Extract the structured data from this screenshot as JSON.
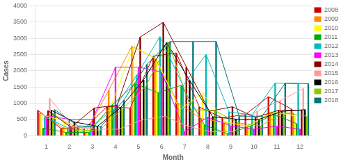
{
  "chart_data": {
    "type": "bar",
    "xlabel": "Month",
    "ylabel": "Cases",
    "categories": [
      "1",
      "2",
      "3",
      "4",
      "5",
      "6",
      "7",
      "8",
      "9",
      "10",
      "11",
      "12"
    ],
    "series": [
      {
        "name": "2008",
        "color": "#cc0000",
        "values": [
          780,
          220,
          200,
          900,
          850,
          2450,
          2550,
          880,
          550,
          650,
          1200,
          820
        ]
      },
      {
        "name": "2009",
        "color": "#ff8800",
        "values": [
          700,
          250,
          100,
          1400,
          2750,
          2400,
          1000,
          530,
          400,
          300,
          680,
          700
        ]
      },
      {
        "name": "2010",
        "color": "#ffff00",
        "values": [
          650,
          450,
          110,
          860,
          2750,
          2350,
          800,
          1300,
          430,
          280,
          750,
          600
        ]
      },
      {
        "name": "2011",
        "color": "#00aa00",
        "values": [
          230,
          100,
          100,
          950,
          1600,
          1320,
          1550,
          330,
          60,
          290,
          660,
          370
        ]
      },
      {
        "name": "2012",
        "color": "#00bbbb",
        "values": [
          580,
          240,
          270,
          820,
          1870,
          3050,
          1540,
          2500,
          730,
          640,
          1620,
          1600
        ]
      },
      {
        "name": "2013",
        "color": "#ff00ff",
        "values": [
          620,
          500,
          500,
          2110,
          2110,
          1960,
          120,
          570,
          300,
          200,
          290,
          200
        ]
      },
      {
        "name": "2014",
        "color": "#880000",
        "values": [
          770,
          260,
          850,
          940,
          3040,
          3490,
          2120,
          750,
          890,
          560,
          780,
          780
        ]
      },
      {
        "name": "2015",
        "color": "#ff9999",
        "values": [
          1150,
          290,
          200,
          200,
          480,
          600,
          290,
          120,
          120,
          760,
          1080,
          1450
        ]
      },
      {
        "name": "2016",
        "color": "#000000",
        "values": [
          780,
          420,
          290,
          860,
          1720,
          2870,
          1700,
          580,
          510,
          500,
          750,
          800
        ]
      },
      {
        "name": "2017",
        "color": "#88cc00",
        "values": [
          680,
          180,
          150,
          820,
          1500,
          2870,
          800,
          780,
          400,
          300,
          700,
          600
        ]
      },
      {
        "name": "2018",
        "color": "#007777",
        "values": [
          800,
          300,
          280,
          1100,
          2200,
          2900,
          2900,
          2900,
          600,
          600,
          1620,
          1600
        ]
      }
    ],
    "ylim": [
      0,
      4000
    ],
    "yticks": [
      0,
      500,
      1000,
      1500,
      2000,
      2500,
      3000,
      3500,
      4000
    ],
    "grid": true,
    "legend": "right"
  }
}
